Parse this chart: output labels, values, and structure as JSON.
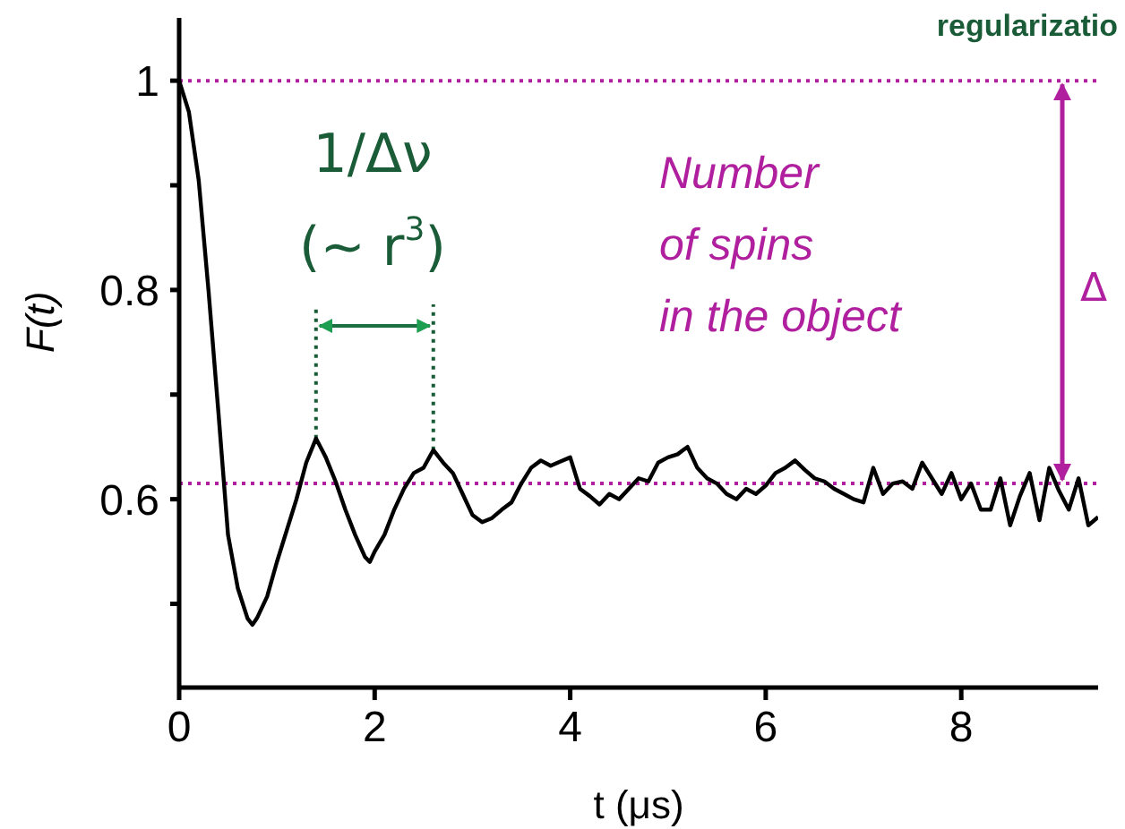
{
  "chart_data": {
    "type": "line",
    "xlabel": "t (μs)",
    "ylabel": "F(t)",
    "x": [
      0,
      0.1,
      0.2,
      0.3,
      0.4,
      0.5,
      0.6,
      0.7,
      0.75,
      0.8,
      0.9,
      1.0,
      1.1,
      1.2,
      1.3,
      1.4,
      1.5,
      1.6,
      1.7,
      1.8,
      1.9,
      1.95,
      2.0,
      2.1,
      2.2,
      2.3,
      2.4,
      2.5,
      2.6,
      2.7,
      2.8,
      2.9,
      3.0,
      3.1,
      3.2,
      3.3,
      3.4,
      3.5,
      3.6,
      3.7,
      3.8,
      3.9,
      4.0,
      4.1,
      4.2,
      4.3,
      4.4,
      4.5,
      4.6,
      4.7,
      4.8,
      4.9,
      5.0,
      5.1,
      5.2,
      5.3,
      5.4,
      5.5,
      5.6,
      5.7,
      5.8,
      5.9,
      6.0,
      6.1,
      6.2,
      6.3,
      6.4,
      6.5,
      6.6,
      6.7,
      6.8,
      6.9,
      7.0,
      7.1,
      7.2,
      7.3,
      7.4,
      7.5,
      7.6,
      7.7,
      7.8,
      7.9,
      8.0,
      8.1,
      8.2,
      8.3,
      8.4,
      8.5,
      8.6,
      8.7,
      8.8,
      8.9,
      9.0,
      9.1,
      9.2,
      9.3,
      9.4
    ],
    "series": [
      {
        "color": "#000000",
        "values": [
          1.0,
          0.97,
          0.905,
          0.8,
          0.685,
          0.566,
          0.515,
          0.486,
          0.48,
          0.487,
          0.507,
          0.54,
          0.57,
          0.6,
          0.635,
          0.658,
          0.64,
          0.617,
          0.59,
          0.566,
          0.545,
          0.54,
          0.55,
          0.566,
          0.59,
          0.61,
          0.625,
          0.63,
          0.647,
          0.635,
          0.625,
          0.605,
          0.585,
          0.578,
          0.582,
          0.59,
          0.597,
          0.615,
          0.63,
          0.637,
          0.632,
          0.636,
          0.64,
          0.61,
          0.603,
          0.595,
          0.605,
          0.6,
          0.61,
          0.62,
          0.617,
          0.635,
          0.64,
          0.643,
          0.65,
          0.63,
          0.62,
          0.615,
          0.605,
          0.6,
          0.61,
          0.605,
          0.613,
          0.625,
          0.63,
          0.637,
          0.628,
          0.62,
          0.617,
          0.61,
          0.605,
          0.6,
          0.597,
          0.63,
          0.605,
          0.615,
          0.617,
          0.61,
          0.635,
          0.62,
          0.605,
          0.625,
          0.6,
          0.615,
          0.59,
          0.59,
          0.62,
          0.575,
          0.603,
          0.625,
          0.58,
          0.63,
          0.608,
          0.59,
          0.62,
          0.575,
          0.583
        ]
      }
    ],
    "xlim": [
      0,
      9.4
    ],
    "ylim": [
      0.42,
      1.06
    ],
    "xticks": [
      0,
      2,
      4,
      6,
      8
    ],
    "yticks": [
      {
        "value": 0.5,
        "label": null
      },
      0.6,
      {
        "value": 0.7,
        "label": null
      },
      0.8,
      {
        "value": 0.9,
        "label": null
      },
      1
    ],
    "marker": "none",
    "line_style": "solid",
    "ref_lines": [
      {
        "axis": "y",
        "value": 1,
        "label": null,
        "color": "#b0209e",
        "line_style": "dotted"
      },
      {
        "axis": "y",
        "value": 0.615,
        "label": null,
        "color": "#b0209e",
        "line_style": "dotted"
      },
      {
        "axis": "x",
        "value": 1.4,
        "label": null,
        "color": "#1a5c38",
        "line_style": "dotted"
      },
      {
        "axis": "x",
        "value": 2.6,
        "label": null,
        "color": "#1a5c38",
        "line_style": "dotted"
      }
    ],
    "annotations": [
      "1/Δν",
      "(~ r$^{3}$)",
      "Number\nof spins\nin the object",
      "Δ",
      "regularizatio"
    ]
  }
}
